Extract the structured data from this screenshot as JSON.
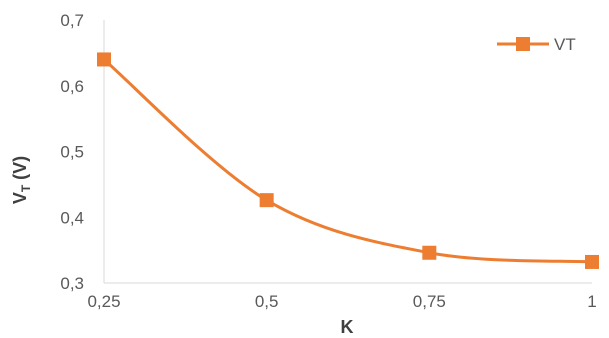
{
  "chart_data": {
    "type": "line",
    "title": "",
    "xlabel": "K",
    "ylabel": "V",
    "ylabel_subscript": "T",
    "ylabel_unit": "(V)",
    "x": [
      0.25,
      0.5,
      0.75,
      1
    ],
    "x_tick_labels": [
      "0,25",
      "0,5",
      "0,75",
      "1"
    ],
    "xlim": [
      0.25,
      1
    ],
    "ylim": [
      0.3,
      0.7
    ],
    "y_ticks": [
      0.3,
      0.4,
      0.5,
      0.6,
      0.7
    ],
    "y_tick_labels": [
      "0,3",
      "0,4",
      "0,5",
      "0,6",
      "0,7"
    ],
    "series": [
      {
        "name": "VT",
        "values": [
          0.64,
          0.426,
          0.346,
          0.332
        ],
        "color": "#ED7D31",
        "marker": "square",
        "smooth": true
      }
    ],
    "grid": false,
    "legend_position": "top-right"
  }
}
